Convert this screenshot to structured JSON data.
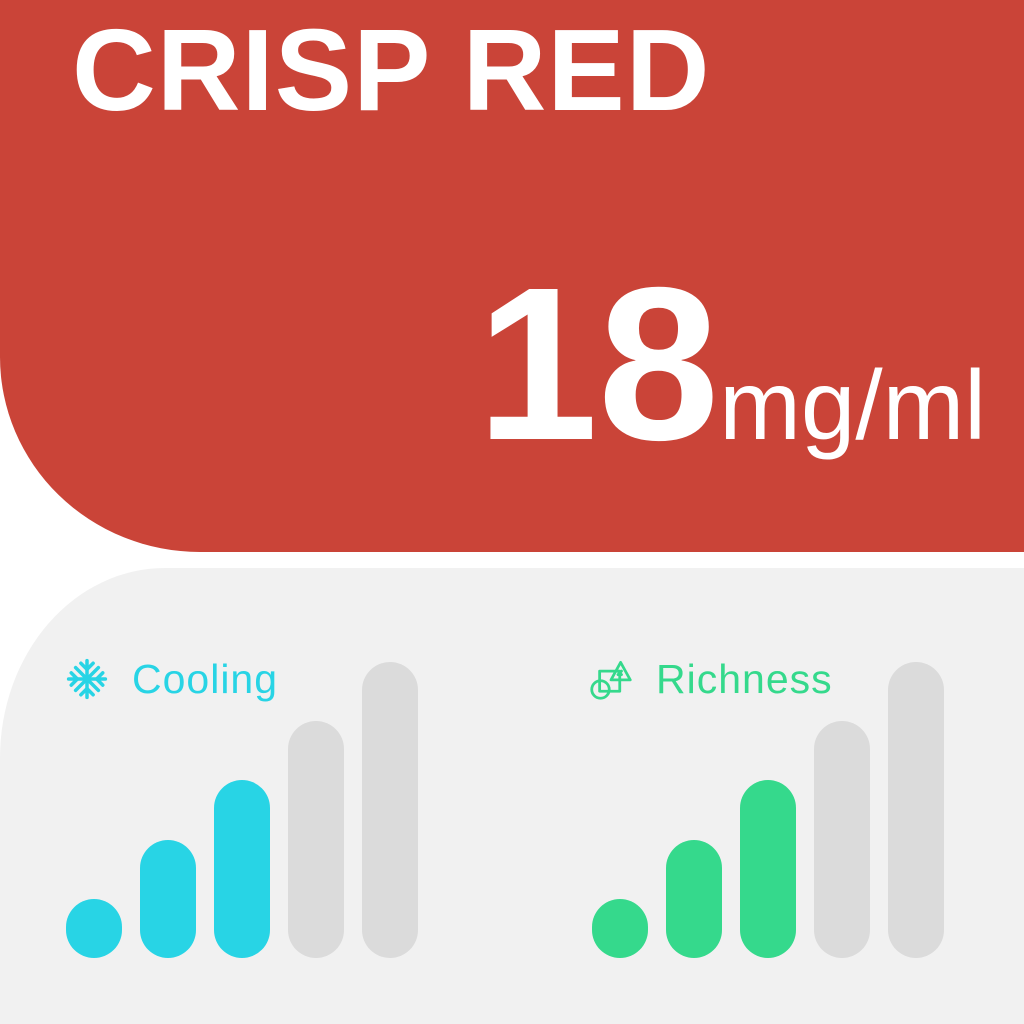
{
  "title": "CRISP RED",
  "strength": {
    "value": "18",
    "unit": "mg/ml"
  },
  "traits": [
    {
      "name": "Cooling",
      "icon": "snowflake-icon",
      "level": 3,
      "max": 5,
      "color": "#28D4E5"
    },
    {
      "name": "Richness",
      "icon": "shapes-icon",
      "level": 3,
      "max": 5,
      "color": "#35D98C"
    }
  ],
  "colors": {
    "header_bg": "#CA4438",
    "panel_bg": "#F1F1F1",
    "bar_inactive": "#DBDBDB",
    "text_on_header": "#FFFFFF"
  }
}
